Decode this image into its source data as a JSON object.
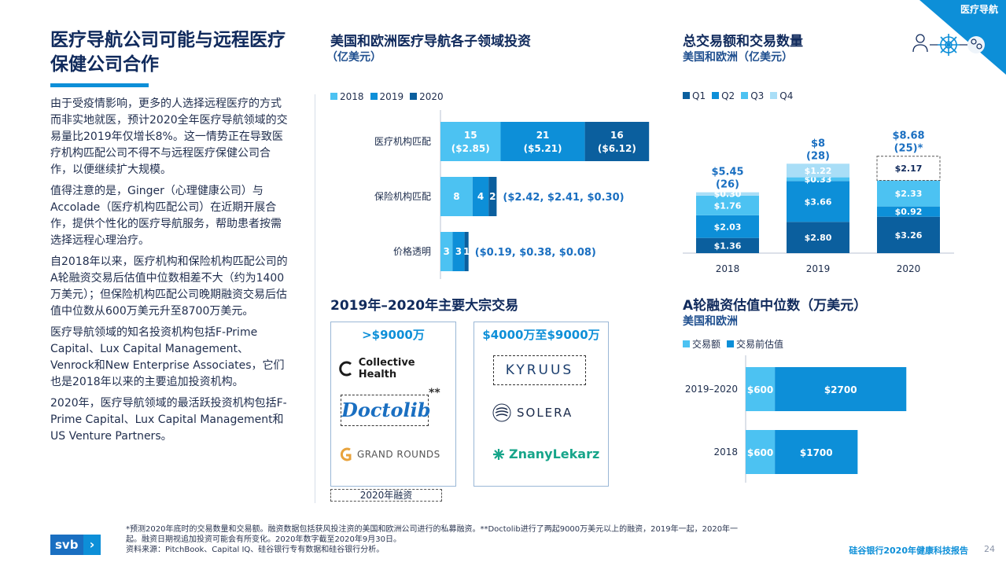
{
  "corner_tag": "医疗导航",
  "main_title": "医疗导航公司可能与远程医疗保健公司合作",
  "paragraphs": [
    "由于受疫情影响，更多的人选择远程医疗的方式而非实地就医，预计2020全年医疗导航领域的交易量比2019年仅增长8%。这一情势正在导致医疗机构匹配公司不得不与远程医疗保健公司合作，以便继续扩大规模。",
    "值得注意的是，Ginger（心理健康公司）与Accolade（医疗机构匹配公司）在近期开展合作，提供个性化的医疗导航服务，帮助患者按需选择远程心理治疗。",
    "自2018年以来，医疗机构和保险机构匹配公司的A轮融资交易后估值中位数相差不大（约为1400万美元）；但保险机构匹配公司晚期融资交易后估值中位数从600万美元升至8700万美元。",
    "医疗导航领域的知名投资机构包括F-Prime Capital、Lux Capital Management、Venrock和New Enterprise Associates，它们也是2018年以来的主要追加投资机构。",
    "2020年，医疗导航领域的最活跃投资机构包括F-Prime Capital、Lux Capital Management和US Venture Partners。"
  ],
  "colors": {
    "light": "#4cc2f2",
    "mid": "#0d8fd8",
    "dark": "#0b5f9e",
    "lightest": "#a9def7",
    "navy": "#102a5c"
  },
  "sub_chart_title": "美国和欧洲医疗导航各子领域投资",
  "sub_chart_unit": "（亿美元）",
  "total_chart_title": "总交易额和交易数量",
  "total_chart_sub": "美国和欧洲（亿美元）",
  "deals_title": "2019年–2020年主要大宗交易",
  "deals_box1_head": ">$9000万",
  "deals_box2_head": "$4000万至$9000万",
  "deals_box1_logos": [
    "Collective Health",
    "Doctolib",
    "GRAND ROUNDS"
  ],
  "deals_box1_mark": "**",
  "deals_box2_logos": [
    "KYRUUS",
    "SOLERA",
    "ZnanyLekarz"
  ],
  "deals_legend": "2020年融资",
  "val_chart_title": "A轮融资估值中位数（万美元）",
  "val_chart_sub": "美国和欧洲",
  "footnote_lines": [
    "*预测2020年底时的交易数量和交易额。融资数据包括获风投注资的美国和欧洲公司进行的私募融资。**Doctolib进行了两起9000万美元以上的融资，2019年一起，2020年一",
    "起。融资日期视追加投资可能会有所变化。2020年数字截至2020年9月30日。",
    "资料来源：PitchBook、Capital IQ、硅谷银行专有数据和硅谷银行分析。"
  ],
  "brand_logo": "svb",
  "report_name": "硅谷银行2020年健康科技报告",
  "page_number": "24",
  "chart_data": [
    {
      "type": "bar",
      "orientation": "horizontal",
      "stacked": true,
      "title": "美国和欧洲医疗导航各子领域投资",
      "unit": "（亿美元）",
      "legend": [
        "2018",
        "2019",
        "2020"
      ],
      "legend_placement": "top-left",
      "categories": [
        "医疗机构匹配",
        "保险机构匹配",
        "价格透明"
      ],
      "series": [
        {
          "name": "2018",
          "color": "#4cc2f2",
          "counts": [
            15,
            8,
            3
          ],
          "amounts": [
            2.85,
            2.42,
            0.19
          ]
        },
        {
          "name": "2019",
          "color": "#0d8fd8",
          "counts": [
            21,
            4,
            3
          ],
          "amounts": [
            5.21,
            2.41,
            0.38
          ]
        },
        {
          "name": "2020",
          "color": "#0b5f9e",
          "counts": [
            16,
            2,
            1
          ],
          "amounts": [
            6.12,
            0.3,
            0.08
          ]
        }
      ],
      "bar_labels": [
        [
          "15",
          "($2.85)",
          "21",
          "($5.21)",
          "16",
          "($6.12)"
        ],
        [
          "8",
          "4",
          "2",
          "($2.42, $2.41, $0.30)"
        ],
        [
          "3",
          "3",
          "1",
          "($0.19, $0.38, $0.08)"
        ]
      ]
    },
    {
      "type": "bar",
      "stacked": true,
      "title": "总交易额和交易数量",
      "subtitle": "美国和欧洲（亿美元）",
      "legend": [
        "Q1",
        "Q2",
        "Q3",
        "Q4"
      ],
      "legend_placement": "top-left",
      "categories": [
        "2018",
        "2019",
        "2020"
      ],
      "series": [
        {
          "name": "Q1",
          "color": "#0b5f9e",
          "values": [
            1.36,
            2.8,
            3.26
          ]
        },
        {
          "name": "Q2",
          "color": "#0d8fd8",
          "values": [
            2.03,
            3.66,
            0.92
          ]
        },
        {
          "name": "Q3",
          "color": "#4cc2f2",
          "values": [
            1.76,
            0.33,
            2.33
          ]
        },
        {
          "name": "Q4",
          "color": "#a9def7",
          "values": [
            0.3,
            1.22,
            2.17
          ]
        }
      ],
      "q4_2020_projected": true,
      "totals": [
        "$5.45",
        "$8",
        "$8.68"
      ],
      "deal_counts": [
        "(26)",
        "(28)",
        "(25)*"
      ]
    },
    {
      "type": "bar",
      "orientation": "horizontal",
      "stacked": true,
      "title": "A轮融资估值中位数（万美元）",
      "subtitle": "美国和欧洲",
      "legend": [
        "交易额",
        "交易前估值"
      ],
      "legend_placement": "top-left",
      "categories": [
        "2019–2020",
        "2018"
      ],
      "series": [
        {
          "name": "交易额",
          "color": "#4cc2f2",
          "values": [
            600,
            600
          ]
        },
        {
          "name": "交易前估值",
          "color": "#0d8fd8",
          "values": [
            2700,
            1700
          ]
        }
      ],
      "bar_labels": [
        [
          "$600",
          "$2700"
        ],
        [
          "$600",
          "$1700"
        ]
      ]
    }
  ]
}
